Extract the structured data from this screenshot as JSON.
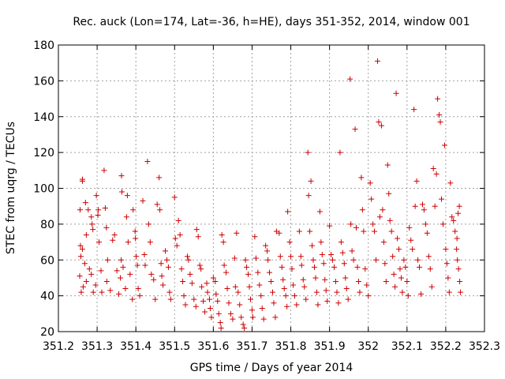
{
  "chart_data": {
    "type": "scatter",
    "title": "Rec. auck (Lon=174, Lat=-36, h=HE), days 351-352, 2014, window 001",
    "xlabel": "GPS time / Days of year 2014",
    "ylabel": "STEC from uqrg / TECUs",
    "xlim": [
      351.2,
      352.3
    ],
    "ylim": [
      20,
      180
    ],
    "xticks": [
      351.2,
      351.3,
      351.4,
      351.5,
      351.6,
      351.7,
      351.8,
      351.9,
      352.0,
      352.1,
      352.2,
      352.3
    ],
    "xtick_labels": [
      "351.2",
      "351.3",
      "351.4",
      "351.5",
      "351.6",
      "351.7",
      "351.8",
      "351.9",
      "352",
      "352.1",
      "352.2",
      "352.3"
    ],
    "yticks": [
      20,
      40,
      60,
      80,
      100,
      120,
      140,
      160,
      180
    ],
    "ytick_labels": [
      "20",
      "40",
      "60",
      "80",
      "100",
      "120",
      "140",
      "160",
      "180"
    ],
    "grid": true,
    "marker": "+",
    "color": "#cc0000",
    "points": [
      [
        351.262,
        105
      ],
      [
        351.262,
        104
      ],
      [
        351.27,
        92
      ],
      [
        351.256,
        88
      ],
      [
        351.277,
        88
      ],
      [
        351.257,
        68
      ],
      [
        351.262,
        66
      ],
      [
        351.258,
        62
      ],
      [
        351.268,
        58
      ],
      [
        351.272,
        74
      ],
      [
        351.255,
        51
      ],
      [
        351.259,
        42
      ],
      [
        351.264,
        45
      ],
      [
        351.272,
        48
      ],
      [
        351.28,
        55
      ],
      [
        351.285,
        84
      ],
      [
        351.287,
        80
      ],
      [
        351.289,
        77
      ],
      [
        351.285,
        52
      ],
      [
        351.29,
        42
      ],
      [
        351.296,
        46
      ],
      [
        351.298,
        96
      ],
      [
        351.303,
        88
      ],
      [
        351.302,
        85
      ],
      [
        351.305,
        70
      ],
      [
        351.31,
        54
      ],
      [
        351.312,
        42
      ],
      [
        351.318,
        110
      ],
      [
        351.321,
        89
      ],
      [
        351.324,
        78
      ],
      [
        351.327,
        60
      ],
      [
        351.325,
        48
      ],
      [
        351.334,
        43
      ],
      [
        351.34,
        71
      ],
      [
        351.345,
        74
      ],
      [
        351.351,
        54
      ],
      [
        351.356,
        41
      ],
      [
        351.36,
        50
      ],
      [
        351.364,
        98
      ],
      [
        351.363,
        107
      ],
      [
        351.362,
        60
      ],
      [
        351.367,
        56
      ],
      [
        351.373,
        44
      ],
      [
        351.378,
        96
      ],
      [
        351.376,
        84
      ],
      [
        351.38,
        70
      ],
      [
        351.385,
        52
      ],
      [
        351.391,
        38
      ],
      [
        351.393,
        88
      ],
      [
        351.398,
        76
      ],
      [
        351.399,
        72
      ],
      [
        351.401,
        62
      ],
      [
        351.404,
        57
      ],
      [
        351.406,
        44
      ],
      [
        351.41,
        40
      ],
      [
        351.418,
        93
      ],
      [
        351.422,
        63
      ],
      [
        351.424,
        57
      ],
      [
        351.43,
        115
      ],
      [
        351.433,
        80
      ],
      [
        351.437,
        70
      ],
      [
        351.44,
        52
      ],
      [
        351.446,
        49
      ],
      [
        351.45,
        38
      ],
      [
        351.455,
        91
      ],
      [
        351.46,
        106
      ],
      [
        351.462,
        88
      ],
      [
        351.465,
        58
      ],
      [
        351.467,
        51
      ],
      [
        351.47,
        46
      ],
      [
        351.476,
        65
      ],
      [
        351.48,
        60
      ],
      [
        351.484,
        56
      ],
      [
        351.487,
        42
      ],
      [
        351.49,
        38
      ],
      [
        351.5,
        95
      ],
      [
        351.502,
        72
      ],
      [
        351.506,
        68
      ],
      [
        351.51,
        82
      ],
      [
        351.514,
        74
      ],
      [
        351.518,
        55
      ],
      [
        351.521,
        48
      ],
      [
        351.524,
        40
      ],
      [
        351.528,
        35
      ],
      [
        351.533,
        62
      ],
      [
        351.536,
        60
      ],
      [
        351.54,
        52
      ],
      [
        351.545,
        47
      ],
      [
        351.55,
        38
      ],
      [
        351.555,
        34
      ],
      [
        351.557,
        77
      ],
      [
        351.561,
        73
      ],
      [
        351.565,
        57
      ],
      [
        351.568,
        55
      ],
      [
        351.57,
        45
      ],
      [
        351.574,
        37
      ],
      [
        351.578,
        31
      ],
      [
        351.583,
        47
      ],
      [
        351.585,
        42
      ],
      [
        351.59,
        38
      ],
      [
        351.592,
        33
      ],
      [
        351.595,
        28
      ],
      [
        351.6,
        50
      ],
      [
        351.605,
        48
      ],
      [
        351.607,
        41
      ],
      [
        351.611,
        37
      ],
      [
        351.614,
        30
      ],
      [
        351.618,
        25
      ],
      [
        351.62,
        22
      ],
      [
        351.622,
        74
      ],
      [
        351.626,
        70
      ],
      [
        351.628,
        57
      ],
      [
        351.633,
        53
      ],
      [
        351.636,
        44
      ],
      [
        351.64,
        36
      ],
      [
        351.645,
        30
      ],
      [
        351.65,
        27
      ],
      [
        351.655,
        61
      ],
      [
        351.657,
        45
      ],
      [
        351.66,
        75
      ],
      [
        351.664,
        42
      ],
      [
        351.668,
        35
      ],
      [
        351.672,
        28
      ],
      [
        351.677,
        24
      ],
      [
        351.68,
        22
      ],
      [
        351.683,
        60
      ],
      [
        351.686,
        56
      ],
      [
        351.69,
        52
      ],
      [
        351.693,
        45
      ],
      [
        351.696,
        38
      ],
      [
        351.7,
        32
      ],
      [
        351.702,
        28
      ],
      [
        351.707,
        73
      ],
      [
        351.71,
        61
      ],
      [
        351.715,
        53
      ],
      [
        351.719,
        46
      ],
      [
        351.723,
        40
      ],
      [
        351.726,
        33
      ],
      [
        351.73,
        27
      ],
      [
        351.735,
        68
      ],
      [
        351.739,
        65
      ],
      [
        351.741,
        60
      ],
      [
        351.745,
        53
      ],
      [
        351.749,
        48
      ],
      [
        351.753,
        42
      ],
      [
        351.756,
        36
      ],
      [
        351.76,
        28
      ],
      [
        351.763,
        76
      ],
      [
        351.77,
        75
      ],
      [
        351.773,
        62
      ],
      [
        351.777,
        56
      ],
      [
        351.78,
        49
      ],
      [
        351.783,
        44
      ],
      [
        351.787,
        40
      ],
      [
        351.79,
        34
      ],
      [
        351.792,
        87
      ],
      [
        351.797,
        70
      ],
      [
        351.8,
        62
      ],
      [
        351.803,
        55
      ],
      [
        351.806,
        46
      ],
      [
        351.81,
        40
      ],
      [
        351.815,
        35
      ],
      [
        351.822,
        76
      ],
      [
        351.826,
        62
      ],
      [
        351.828,
        57
      ],
      [
        351.832,
        49
      ],
      [
        351.835,
        45
      ],
      [
        351.839,
        38
      ],
      [
        351.844,
        120
      ],
      [
        351.846,
        96
      ],
      [
        351.849,
        76
      ],
      [
        351.852,
        104
      ],
      [
        351.855,
        68
      ],
      [
        351.858,
        60
      ],
      [
        351.861,
        56
      ],
      [
        351.864,
        50
      ],
      [
        351.867,
        42
      ],
      [
        351.87,
        35
      ],
      [
        351.875,
        87
      ],
      [
        351.878,
        70
      ],
      [
        351.881,
        63
      ],
      [
        351.885,
        58
      ],
      [
        351.888,
        49
      ],
      [
        351.891,
        43
      ],
      [
        351.894,
        37
      ],
      [
        351.9,
        79
      ],
      [
        351.904,
        63
      ],
      [
        351.908,
        60
      ],
      [
        351.912,
        56
      ],
      [
        351.916,
        48
      ],
      [
        351.919,
        42
      ],
      [
        351.923,
        36
      ],
      [
        351.927,
        120
      ],
      [
        351.93,
        70
      ],
      [
        351.934,
        64
      ],
      [
        351.938,
        58
      ],
      [
        351.941,
        50
      ],
      [
        351.944,
        44
      ],
      [
        351.948,
        38
      ],
      [
        351.953,
        161
      ],
      [
        351.955,
        80
      ],
      [
        351.958,
        65
      ],
      [
        351.962,
        60
      ],
      [
        351.966,
        133
      ],
      [
        351.969,
        78
      ],
      [
        351.972,
        56
      ],
      [
        351.975,
        48
      ],
      [
        351.978,
        42
      ],
      [
        351.982,
        106
      ],
      [
        351.985,
        88
      ],
      [
        351.988,
        76
      ],
      [
        351.992,
        55
      ],
      [
        351.996,
        46
      ],
      [
        352.0,
        40
      ],
      [
        352.005,
        103
      ],
      [
        352.008,
        94
      ],
      [
        352.012,
        80
      ],
      [
        352.016,
        76
      ],
      [
        352.02,
        60
      ],
      [
        352.024,
        171
      ],
      [
        352.027,
        137
      ],
      [
        352.03,
        84
      ],
      [
        352.034,
        135
      ],
      [
        352.037,
        88
      ],
      [
        352.04,
        70
      ],
      [
        352.043,
        58
      ],
      [
        352.046,
        48
      ],
      [
        352.05,
        113
      ],
      [
        352.053,
        97
      ],
      [
        352.056,
        82
      ],
      [
        352.06,
        76
      ],
      [
        352.063,
        62
      ],
      [
        352.066,
        52
      ],
      [
        352.069,
        45
      ],
      [
        352.072,
        153
      ],
      [
        352.075,
        72
      ],
      [
        352.079,
        66
      ],
      [
        352.082,
        55
      ],
      [
        352.085,
        50
      ],
      [
        352.088,
        42
      ],
      [
        352.092,
        60
      ],
      [
        352.096,
        56
      ],
      [
        352.1,
        48
      ],
      [
        352.103,
        40
      ],
      [
        352.106,
        78
      ],
      [
        352.11,
        71
      ],
      [
        352.114,
        66
      ],
      [
        352.118,
        144
      ],
      [
        352.121,
        90
      ],
      [
        352.125,
        104
      ],
      [
        352.128,
        60
      ],
      [
        352.132,
        56
      ],
      [
        352.136,
        41
      ],
      [
        352.14,
        91
      ],
      [
        352.144,
        88
      ],
      [
        352.148,
        80
      ],
      [
        352.152,
        75
      ],
      [
        352.156,
        62
      ],
      [
        352.16,
        55
      ],
      [
        352.164,
        45
      ],
      [
        352.168,
        111
      ],
      [
        352.172,
        90
      ],
      [
        352.176,
        108
      ],
      [
        352.179,
        150
      ],
      [
        352.183,
        141
      ],
      [
        352.186,
        137
      ],
      [
        352.189,
        94
      ],
      [
        352.193,
        80
      ],
      [
        352.197,
        124
      ],
      [
        352.2,
        66
      ],
      [
        352.203,
        58
      ],
      [
        352.206,
        50
      ],
      [
        352.209,
        42
      ],
      [
        352.212,
        103
      ],
      [
        352.216,
        84
      ],
      [
        352.22,
        82
      ],
      [
        352.224,
        76
      ],
      [
        352.228,
        66
      ],
      [
        352.23,
        60
      ],
      [
        352.233,
        55
      ],
      [
        352.236,
        48
      ],
      [
        352.238,
        42
      ],
      [
        352.235,
        90
      ],
      [
        352.232,
        86
      ],
      [
        352.229,
        72
      ]
    ]
  }
}
